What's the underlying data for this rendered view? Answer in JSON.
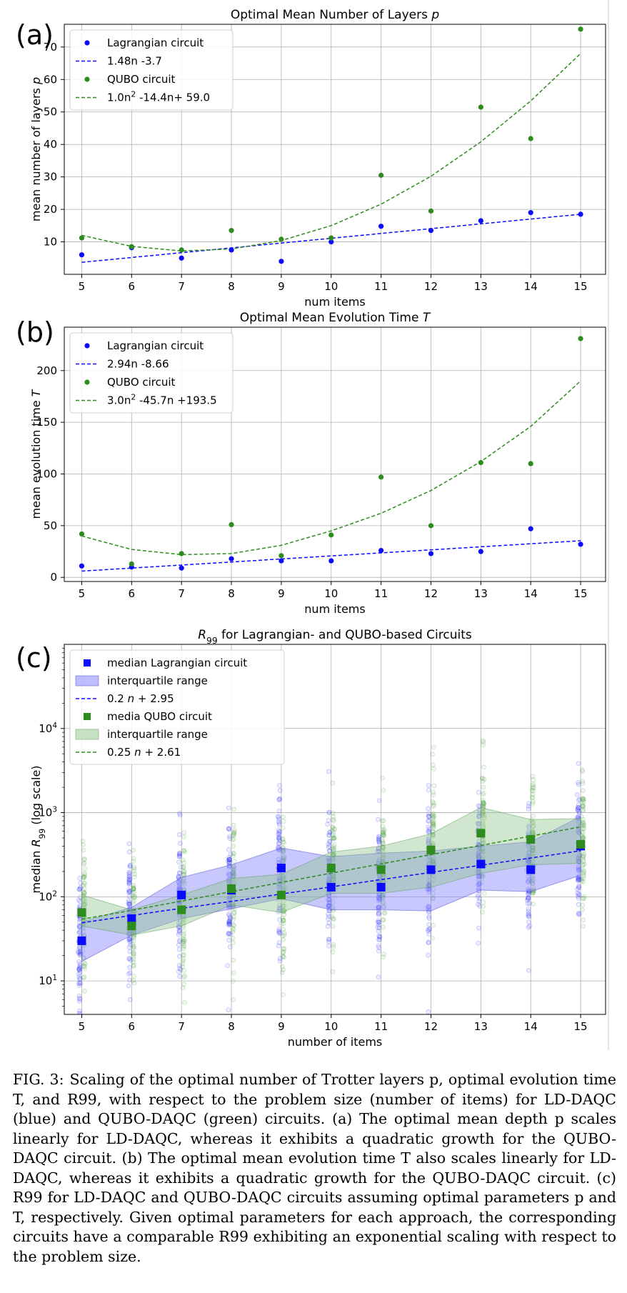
{
  "caption": {
    "label": "FIG. 3:",
    "text": "Scaling of the optimal number of Trotter layers p, optimal evolution time T, and R99, with respect to the problem size (number of items) for LD-DAQC (blue) and QUBO-DAQC (green) circuits. (a) The optimal mean depth p scales linearly for LD-DAQC, whereas it exhibits a quadratic growth for the QUBO-DAQC circuit. (b) The optimal mean evolution time T also scales linearly for LD-DAQC, whereas it exhibits a quadratic growth for the QUBO-DAQC circuit. (c) R99 for LD-DAQC and QUBO-DAQC circuits assuming optimal parameters p and T, respectively. Given optimal parameters for each approach, the corresponding circuits have a comparable R99 exhibiting an exponential scaling with respect to the problem size."
  },
  "colors": {
    "blue": "#0a0aff",
    "green": "#2e8b1e",
    "blue_fill": "#7b7bff",
    "green_fill": "#8fc48a"
  },
  "chart_data": [
    {
      "panel_label": "(a)",
      "type": "scatter",
      "title": "Optimal Mean Number of Layers p",
      "xlabel": "num items",
      "ylabel": "mean number of layers p",
      "x": [
        5,
        6,
        7,
        8,
        9,
        10,
        11,
        12,
        13,
        14,
        15
      ],
      "xlim": [
        4.65,
        15.5
      ],
      "ylim": [
        0,
        77
      ],
      "yticks": [
        10,
        20,
        30,
        40,
        50,
        60,
        70
      ],
      "yscale": "linear",
      "grid": true,
      "legend_position": "top-left",
      "series": [
        {
          "name": "Lagrangian circuit",
          "kind": "points",
          "color": "blue",
          "values": [
            6.0,
            8.2,
            5.0,
            7.5,
            4.0,
            10.0,
            14.8,
            13.5,
            16.5,
            19.0,
            18.5
          ]
        },
        {
          "name": "1.48n -3.7",
          "kind": "fit",
          "color": "blue",
          "values": [
            3.7,
            5.18,
            6.66,
            8.14,
            9.62,
            11.1,
            12.58,
            14.06,
            15.54,
            17.02,
            18.5
          ]
        },
        {
          "name": "QUBO circuit",
          "kind": "points",
          "color": "green",
          "values": [
            11.2,
            8.5,
            7.5,
            13.5,
            10.8,
            11.2,
            30.5,
            19.5,
            51.5,
            41.8,
            75.5
          ]
        },
        {
          "name": "1.0n² -14.4n+ 59.0",
          "kind": "fit",
          "color": "green",
          "values": [
            12.0,
            8.6,
            7.2,
            7.8,
            10.4,
            15.0,
            21.6,
            30.2,
            40.8,
            53.4,
            68.0
          ]
        }
      ]
    },
    {
      "panel_label": "(b)",
      "type": "scatter",
      "title": "Optimal Mean Evolution Time T",
      "xlabel": "num items",
      "ylabel": "mean evolution time T",
      "x": [
        5,
        6,
        7,
        8,
        9,
        10,
        11,
        12,
        13,
        14,
        15
      ],
      "xlim": [
        4.65,
        15.5
      ],
      "ylim": [
        -4,
        242
      ],
      "yticks": [
        0,
        50,
        100,
        150,
        200
      ],
      "yscale": "linear",
      "grid": true,
      "legend_position": "top-left",
      "series": [
        {
          "name": "Lagrangian circuit",
          "kind": "points",
          "color": "blue",
          "values": [
            11.0,
            10.0,
            9.0,
            18.0,
            16.0,
            16.0,
            26.0,
            23.0,
            25.0,
            47.0,
            32.0
          ]
        },
        {
          "name": "2.94n -8.66",
          "kind": "fit",
          "color": "blue",
          "values": [
            6.04,
            8.98,
            11.92,
            14.86,
            17.8,
            20.74,
            23.68,
            26.62,
            29.56,
            32.5,
            35.44
          ]
        },
        {
          "name": "QUBO circuit",
          "kind": "points",
          "color": "green",
          "values": [
            42.0,
            13.0,
            23.0,
            51.0,
            21.0,
            41.0,
            97.0,
            50.0,
            111.0,
            110.0,
            231.0
          ]
        },
        {
          "name": "3.0n² -45.7n +193.5",
          "kind": "fit",
          "color": "green",
          "values": [
            40.0,
            27.0,
            22.0,
            23.0,
            31.0,
            45.0,
            62.0,
            84.0,
            112.0,
            146.0,
            190.0
          ]
        }
      ]
    },
    {
      "panel_label": "(c)",
      "type": "scatter",
      "title": "R99 for Lagrangian- and QUBO-based Circuits",
      "xlabel": "number of items",
      "ylabel": "median R99 (log scale)",
      "x": [
        5,
        6,
        7,
        8,
        9,
        10,
        11,
        12,
        13,
        14,
        15
      ],
      "xlim": [
        4.65,
        15.5
      ],
      "ylim": [
        4,
        100000
      ],
      "yscale": "log",
      "yticks": [
        10,
        100,
        1000,
        10000
      ],
      "ytick_labels": [
        "10^1",
        "10^2",
        "10^3",
        "10^4"
      ],
      "grid": true,
      "legend_position": "top-left",
      "series": [
        {
          "name": "median Lagrangian circuit",
          "kind": "squares",
          "color": "blue",
          "values": [
            30,
            55,
            105,
            120,
            220,
            130,
            130,
            210,
            245,
            210,
            400
          ]
        },
        {
          "name": "interquartile range",
          "kind": "band",
          "color": "blue",
          "lower": [
            17,
            35,
            55,
            72,
            95,
            70,
            70,
            68,
            120,
            115,
            180
          ],
          "upper": [
            50,
            75,
            170,
            240,
            380,
            300,
            330,
            350,
            400,
            450,
            900
          ]
        },
        {
          "name": "0.2 n + 2.95",
          "kind": "fit",
          "color": "blue",
          "values": [
            49,
            60,
            73,
            88,
            108,
            131,
            160,
            195,
            237,
            289,
            352
          ]
        },
        {
          "name": "media QUBO circuit",
          "kind": "squares",
          "color": "green",
          "values": [
            65,
            45,
            70,
            125,
            105,
            220,
            210,
            360,
            570,
            480,
            420
          ]
        },
        {
          "name": "interquartile range",
          "kind": "band",
          "color": "green",
          "lower": [
            45,
            35,
            45,
            80,
            65,
            110,
            110,
            130,
            190,
            240,
            250
          ],
          "upper": [
            105,
            70,
            105,
            165,
            185,
            340,
            400,
            560,
            1150,
            830,
            850
          ]
        },
        {
          "name": "0.25 n + 2.61",
          "kind": "fit",
          "color": "green",
          "values": [
            54,
            69,
            89,
            115,
            148,
            191,
            246,
            317,
            408,
            526,
            678
          ]
        }
      ]
    }
  ]
}
